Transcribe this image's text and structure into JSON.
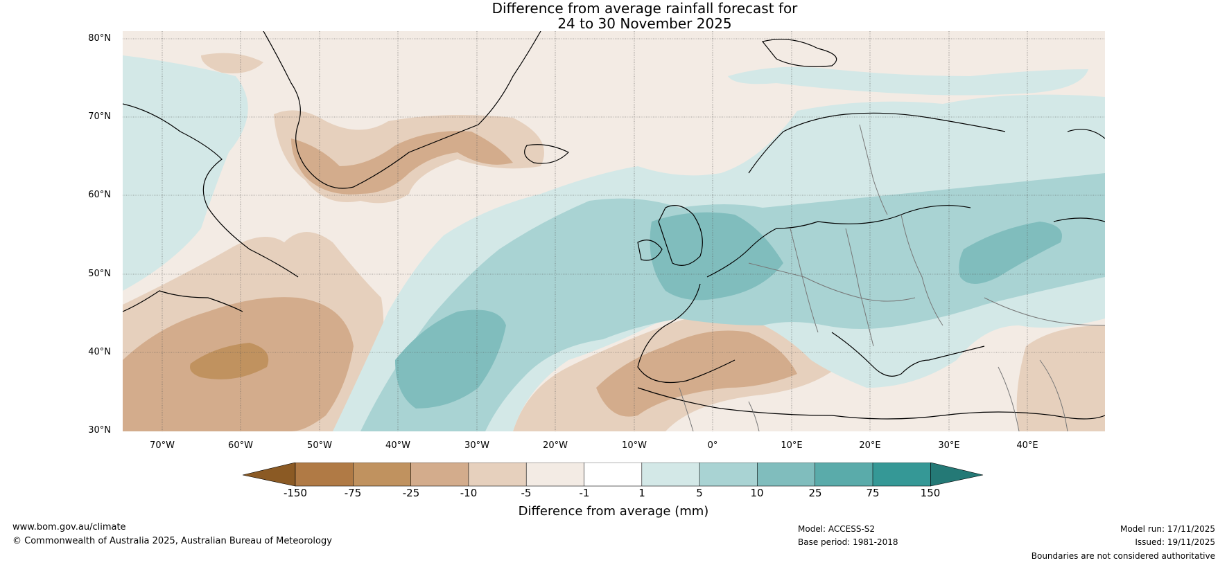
{
  "title": {
    "line1": "Difference from average rainfall forecast for",
    "line2": "24 to 30 November 2025"
  },
  "map": {
    "lat_labels": [
      "80°N",
      "70°N",
      "60°N",
      "50°N",
      "40°N",
      "30°N"
    ],
    "lon_labels": [
      "70°W",
      "60°W",
      "50°W",
      "40°W",
      "30°W",
      "20°W",
      "10°W",
      "0°",
      "10°E",
      "20°E",
      "30°E",
      "40°E"
    ],
    "lat_range": [
      30,
      81
    ],
    "lon_range": [
      -75,
      50
    ],
    "colors": {
      "brown_light": "#f3ebe4",
      "brown_2": "#e6d0bd",
      "brown_3": "#d3ac8c",
      "brown_4": "#c0925f",
      "teal_light": "#d3e8e7",
      "teal_2": "#a9d3d3",
      "teal_3": "#80bdbd",
      "coast": "#000000",
      "border": "#777777"
    }
  },
  "colorbar": {
    "labels": [
      "-150",
      "-75",
      "-25",
      "-10",
      "-5",
      "-1",
      "1",
      "5",
      "10",
      "25",
      "75",
      "150"
    ],
    "colors": [
      "#8b5a24",
      "#b07a45",
      "#c0925f",
      "#d3ac8c",
      "#e6d0bd",
      "#f3ebe4",
      "#ffffff",
      "#d3e8e7",
      "#a9d3d3",
      "#80bdbd",
      "#5aabaa",
      "#359896",
      "#247976"
    ],
    "title": "Difference from average (mm)"
  },
  "footer": {
    "site": "www.bom.gov.au/climate",
    "copyright": "© Commonwealth of Australia 2025, Australian Bureau of Meteorology",
    "model": "Model: ACCESS-S2",
    "base_period": "Base period: 1981-2018",
    "model_run": "Model run: 17/11/2025",
    "issued": "Issued: 19/11/2025",
    "disclaimer": "Boundaries are not considered authoritative"
  }
}
